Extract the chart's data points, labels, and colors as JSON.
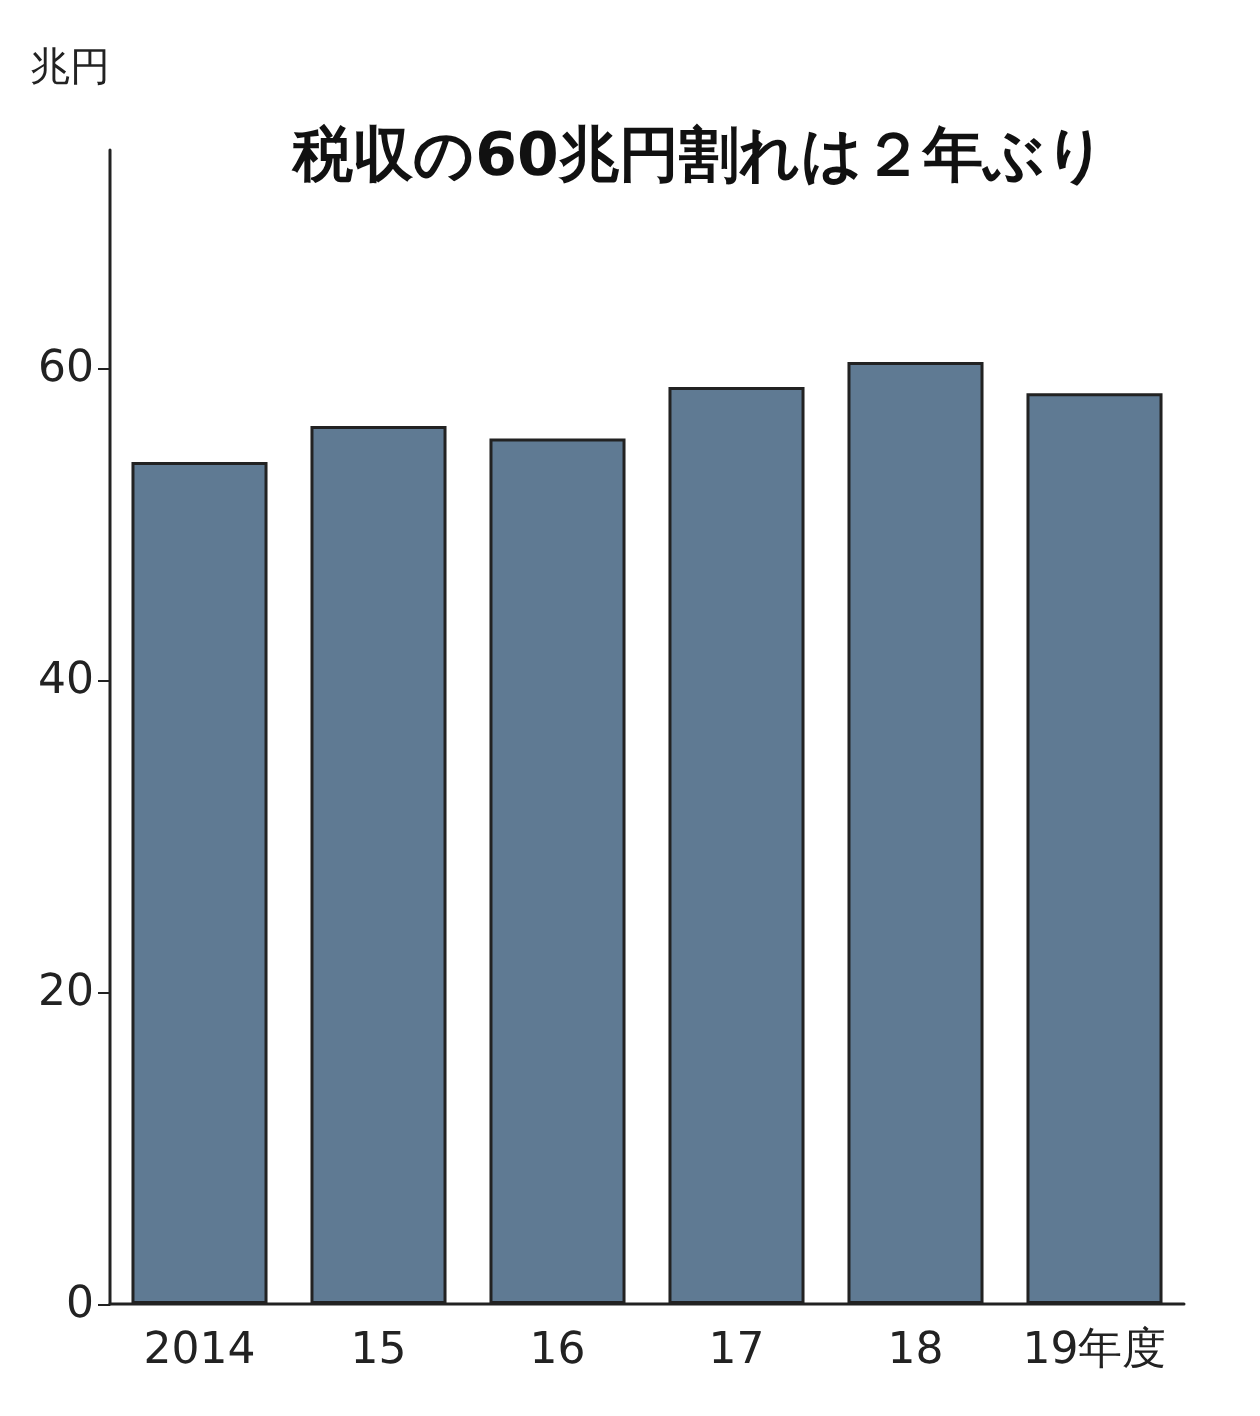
{
  "chart_data": {
    "type": "bar",
    "title": "税収の60兆円割れは２年ぶり",
    "ylabel": "兆円",
    "categories": [
      "2014",
      "15",
      "16",
      "17",
      "18",
      "19年度"
    ],
    "values": [
      54.0,
      56.3,
      55.5,
      58.8,
      60.4,
      58.4
    ],
    "color": "#5f7a93",
    "ylim": [
      0,
      74
    ],
    "yticks": [
      0,
      20,
      40,
      60
    ],
    "grid": false
  }
}
